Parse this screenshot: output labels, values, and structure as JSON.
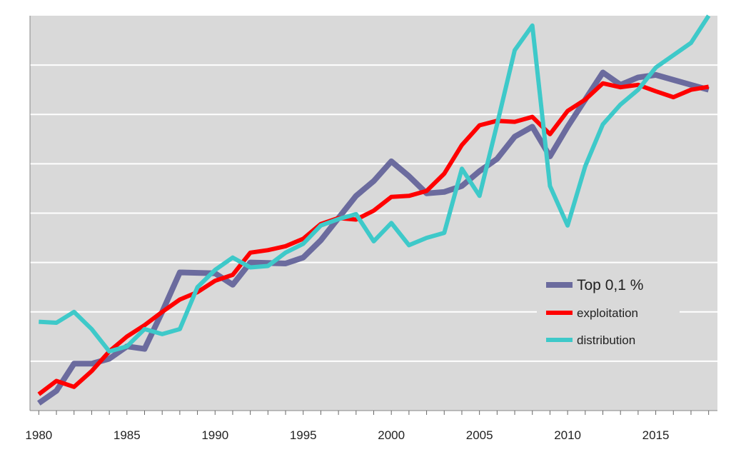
{
  "chart_data": {
    "type": "line",
    "title": "",
    "xlabel": "",
    "ylabel": "",
    "xlim": [
      1979.5,
      2018.5
    ],
    "ylim": [
      0,
      8
    ],
    "x_ticks": [
      1980,
      1985,
      1990,
      1995,
      2000,
      2005,
      2010,
      2015
    ],
    "x_tick_labels": [
      "1980",
      "1985",
      "1990",
      "1995",
      "2000",
      "2005",
      "2010",
      "2015"
    ],
    "y_gridlines": [
      1,
      2,
      3,
      4,
      5,
      6,
      7
    ],
    "grid": true,
    "background_color": "#d9d9d9",
    "legend_position": "bottom-right",
    "x": [
      1980,
      1981,
      1982,
      1983,
      1984,
      1985,
      1986,
      1987,
      1988,
      1989,
      1990,
      1991,
      1992,
      1993,
      1994,
      1995,
      1996,
      1997,
      1998,
      1999,
      2000,
      2001,
      2002,
      2003,
      2004,
      2005,
      2006,
      2007,
      2008,
      2009,
      2010,
      2011,
      2012,
      2013,
      2014,
      2015,
      2016,
      2017,
      2018
    ],
    "series": [
      {
        "name": "Top 0,1 %",
        "color": "#6b6b9e",
        "width": 8,
        "values": [
          0.15,
          0.4,
          0.95,
          0.95,
          1.05,
          1.3,
          1.25,
          2.0,
          2.8,
          2.79,
          2.78,
          2.55,
          3.0,
          2.99,
          2.98,
          3.1,
          3.45,
          3.9,
          4.35,
          4.65,
          5.05,
          4.75,
          4.4,
          4.43,
          4.55,
          4.85,
          5.1,
          5.55,
          5.75,
          5.15,
          5.75,
          6.3,
          6.85,
          6.6,
          6.75,
          6.8,
          6.7,
          6.6,
          6.5
        ]
      },
      {
        "name": "exploitation",
        "color": "#ff0000",
        "width": 6,
        "values": [
          0.33,
          0.6,
          0.48,
          0.8,
          1.2,
          1.5,
          1.73,
          2.0,
          2.25,
          2.4,
          2.63,
          2.75,
          3.2,
          3.25,
          3.33,
          3.48,
          3.78,
          3.9,
          3.87,
          4.05,
          4.33,
          4.35,
          4.45,
          4.8,
          5.38,
          5.78,
          5.87,
          5.85,
          5.95,
          5.6,
          6.07,
          6.3,
          6.63,
          6.55,
          6.6,
          6.47,
          6.35,
          6.5,
          6.56
        ]
      },
      {
        "name": "distribution",
        "color": "#3ec9c9",
        "width": 6,
        "values": [
          1.8,
          1.78,
          2.0,
          1.65,
          1.2,
          1.3,
          1.65,
          1.55,
          1.65,
          2.5,
          2.85,
          3.1,
          2.9,
          2.93,
          3.2,
          3.38,
          3.75,
          3.88,
          3.98,
          3.43,
          3.8,
          3.35,
          3.5,
          3.6,
          4.9,
          4.35,
          5.8,
          7.3,
          7.8,
          4.55,
          3.75,
          4.95,
          5.8,
          6.2,
          6.5,
          6.95,
          7.2,
          7.45,
          8.0
        ]
      }
    ]
  }
}
